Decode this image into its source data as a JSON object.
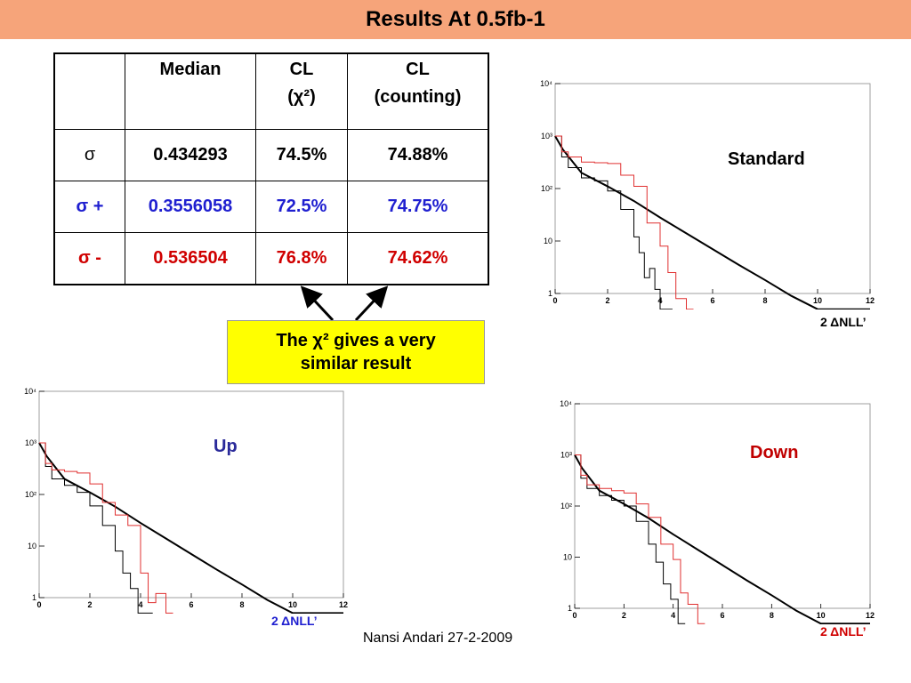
{
  "header": {
    "title": "Results At 0.5fb-1"
  },
  "table": {
    "headers": [
      {
        "line1": "",
        "line2": ""
      },
      {
        "line1": "Median",
        "line2": ""
      },
      {
        "line1": "CL",
        "line2": "(χ²)"
      },
      {
        "line1": "CL",
        "line2": "(counting)"
      }
    ],
    "rows": [
      {
        "label": "σ",
        "median": "0.434293",
        "cl_chi2": "74.5%",
        "cl_counting": "74.88%",
        "color": "#000000"
      },
      {
        "label": "σ +",
        "median": "0.3556058",
        "cl_chi2": "72.5%",
        "cl_counting": "74.75%",
        "color": "#1f1fd0"
      },
      {
        "label": "σ -",
        "median": "0.536504",
        "cl_chi2": "76.8%",
        "cl_counting": "74.62%",
        "color": "#d00000"
      }
    ]
  },
  "callout": {
    "line1": "The χ² gives a very",
    "line2": "similar result"
  },
  "plots": {
    "standard": {
      "label": "Standard",
      "xlabel": "2 ΔNLL’",
      "label_color": "#000000"
    },
    "up": {
      "label": "Up",
      "xlabel": "2 ΔNLL’",
      "label_color": "#2a2a9a"
    },
    "down": {
      "label": "Down",
      "xlabel": "2 ΔNLL’",
      "label_color": "#c00000"
    }
  },
  "footer": {
    "text": "Nansi Andari 27-2-2009"
  },
  "chart_data": [
    {
      "type": "line",
      "name_ref": "standard",
      "x_ticks": [
        "0",
        "2",
        "4",
        "6",
        "8",
        "10",
        "12"
      ],
      "y_ticks": [
        "1",
        "10",
        "10²",
        "10³",
        "10⁴"
      ],
      "xlim": [
        0,
        12
      ],
      "ylim_log10": [
        0,
        4
      ],
      "log_y": true,
      "series": [
        {
          "color": "#000000",
          "style": "curve",
          "x": [
            0,
            0.3,
            1,
            2,
            3,
            4,
            5,
            6,
            7,
            8,
            9,
            10,
            12
          ],
          "y": [
            1000,
            550,
            200,
            110,
            58,
            28,
            14,
            7,
            3.5,
            1.8,
            0.9,
            0.5,
            0.5
          ]
        },
        {
          "color": "#000000",
          "style": "step",
          "x": [
            0,
            0.25,
            0.5,
            1,
            1.5,
            2,
            2.5,
            3,
            3.2,
            3.4,
            3.6,
            3.8,
            4,
            4.2
          ],
          "y": [
            1000,
            400,
            250,
            160,
            140,
            90,
            40,
            12,
            6,
            2,
            3,
            1.2,
            0.5,
            0.5
          ]
        },
        {
          "color": "#e03030",
          "style": "step",
          "x": [
            0,
            0.25,
            0.5,
            1,
            1.5,
            2,
            2.5,
            3,
            3.5,
            4,
            4.3,
            4.6,
            5
          ],
          "y": [
            1000,
            500,
            400,
            320,
            310,
            300,
            180,
            110,
            22,
            8,
            2.5,
            0.8,
            0.5
          ]
        }
      ]
    },
    {
      "type": "line",
      "name_ref": "up",
      "x_ticks": [
        "0",
        "2",
        "4",
        "6",
        "8",
        "10",
        "12"
      ],
      "y_ticks": [
        "1",
        "10",
        "10²",
        "10³",
        "10⁴"
      ],
      "xlim": [
        0,
        12
      ],
      "ylim_log10": [
        0,
        4
      ],
      "log_y": true,
      "series": [
        {
          "color": "#000000",
          "style": "curve",
          "x": [
            0,
            0.3,
            1,
            2,
            3,
            4,
            5,
            6,
            7,
            8,
            9,
            10,
            12
          ],
          "y": [
            1000,
            550,
            200,
            110,
            58,
            28,
            14,
            7,
            3.5,
            1.8,
            0.9,
            0.5,
            0.5
          ]
        },
        {
          "color": "#000000",
          "style": "step",
          "x": [
            0,
            0.25,
            0.5,
            1,
            1.5,
            2,
            2.5,
            3,
            3.3,
            3.6,
            3.9,
            4.2
          ],
          "y": [
            1000,
            350,
            200,
            150,
            110,
            60,
            25,
            8,
            3,
            1.5,
            0.5,
            0.5
          ]
        },
        {
          "color": "#e03030",
          "style": "step",
          "x": [
            0,
            0.25,
            0.5,
            1,
            1.5,
            2,
            2.5,
            3,
            3.5,
            4,
            4.3,
            4.6,
            5
          ],
          "y": [
            1000,
            400,
            300,
            280,
            260,
            160,
            70,
            40,
            25,
            3,
            0.8,
            1.2,
            0.5
          ]
        }
      ]
    },
    {
      "type": "line",
      "name_ref": "down",
      "x_ticks": [
        "0",
        "2",
        "4",
        "6",
        "8",
        "10",
        "12"
      ],
      "y_ticks": [
        "1",
        "10",
        "10²",
        "10³",
        "10⁴"
      ],
      "xlim": [
        0,
        12
      ],
      "ylim_log10": [
        0,
        4
      ],
      "log_y": true,
      "series": [
        {
          "color": "#000000",
          "style": "curve",
          "x": [
            0,
            0.3,
            1,
            2,
            3,
            4,
            5,
            6,
            7,
            8,
            9,
            10,
            12
          ],
          "y": [
            1000,
            550,
            200,
            110,
            58,
            28,
            14,
            7,
            3.5,
            1.8,
            0.9,
            0.5,
            0.5
          ]
        },
        {
          "color": "#000000",
          "style": "step",
          "x": [
            0,
            0.25,
            0.5,
            1,
            1.5,
            2,
            2.5,
            3,
            3.3,
            3.6,
            3.9,
            4.2
          ],
          "y": [
            1000,
            350,
            220,
            160,
            130,
            100,
            50,
            18,
            8,
            3,
            1.5,
            0.5
          ]
        },
        {
          "color": "#e03030",
          "style": "step",
          "x": [
            0,
            0.25,
            0.5,
            1,
            1.5,
            2,
            2.5,
            3,
            3.5,
            4,
            4.3,
            4.6,
            5
          ],
          "y": [
            1000,
            400,
            260,
            220,
            200,
            180,
            110,
            60,
            18,
            9,
            2,
            1.2,
            0.5
          ]
        }
      ]
    }
  ]
}
